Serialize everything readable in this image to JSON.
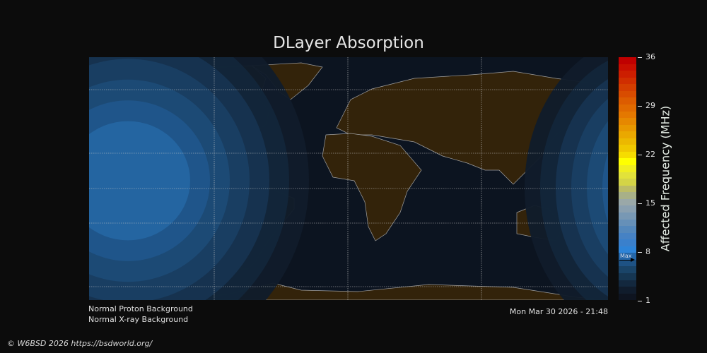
{
  "title": "DLayer Absorption",
  "status": {
    "proton": "Normal Proton Background",
    "xray": "Normal X-ray Background",
    "timestamp": "Mon Mar 30 2026 - 21:48"
  },
  "footer": "© W6BSD 2026 https://bsdworld.org/",
  "colorbar": {
    "label": "Affected Frequency (MHz)",
    "ticks": [
      "36",
      "29",
      "22",
      "15",
      "8",
      "1"
    ],
    "range": [
      1,
      36
    ],
    "max_marker_label": "Max",
    "max_marker_value": 6.8,
    "colors": [
      "#c00000",
      "#c80e00",
      "#cc1e00",
      "#d02e00",
      "#d43e00",
      "#d84c00",
      "#dc5c00",
      "#e06a00",
      "#e47800",
      "#e68800",
      "#e89800",
      "#eaa800",
      "#ecb800",
      "#f0c800",
      "#f6dc00",
      "#ffff00",
      "#f0ee20",
      "#e2e23a",
      "#d4d446",
      "#bcbc66",
      "#a8b088",
      "#9aa8a8",
      "#8aa0b0",
      "#7898b4",
      "#6690b8",
      "#5488bc",
      "#4682c4",
      "#3a80cc",
      "#2e84d8",
      "#2466a8",
      "#1e5284",
      "#1a4468",
      "#163652",
      "#13283e",
      "#101c2c",
      "#0e1420"
    ]
  },
  "map": {
    "background": "#0c1420",
    "land": "#33230a",
    "coast": "#a0a0a0",
    "contour_colors": [
      "#111c2a",
      "#13263a",
      "#173350",
      "#1a3f63",
      "#1d4a76",
      "#20568a",
      "#2466a2"
    ]
  }
}
